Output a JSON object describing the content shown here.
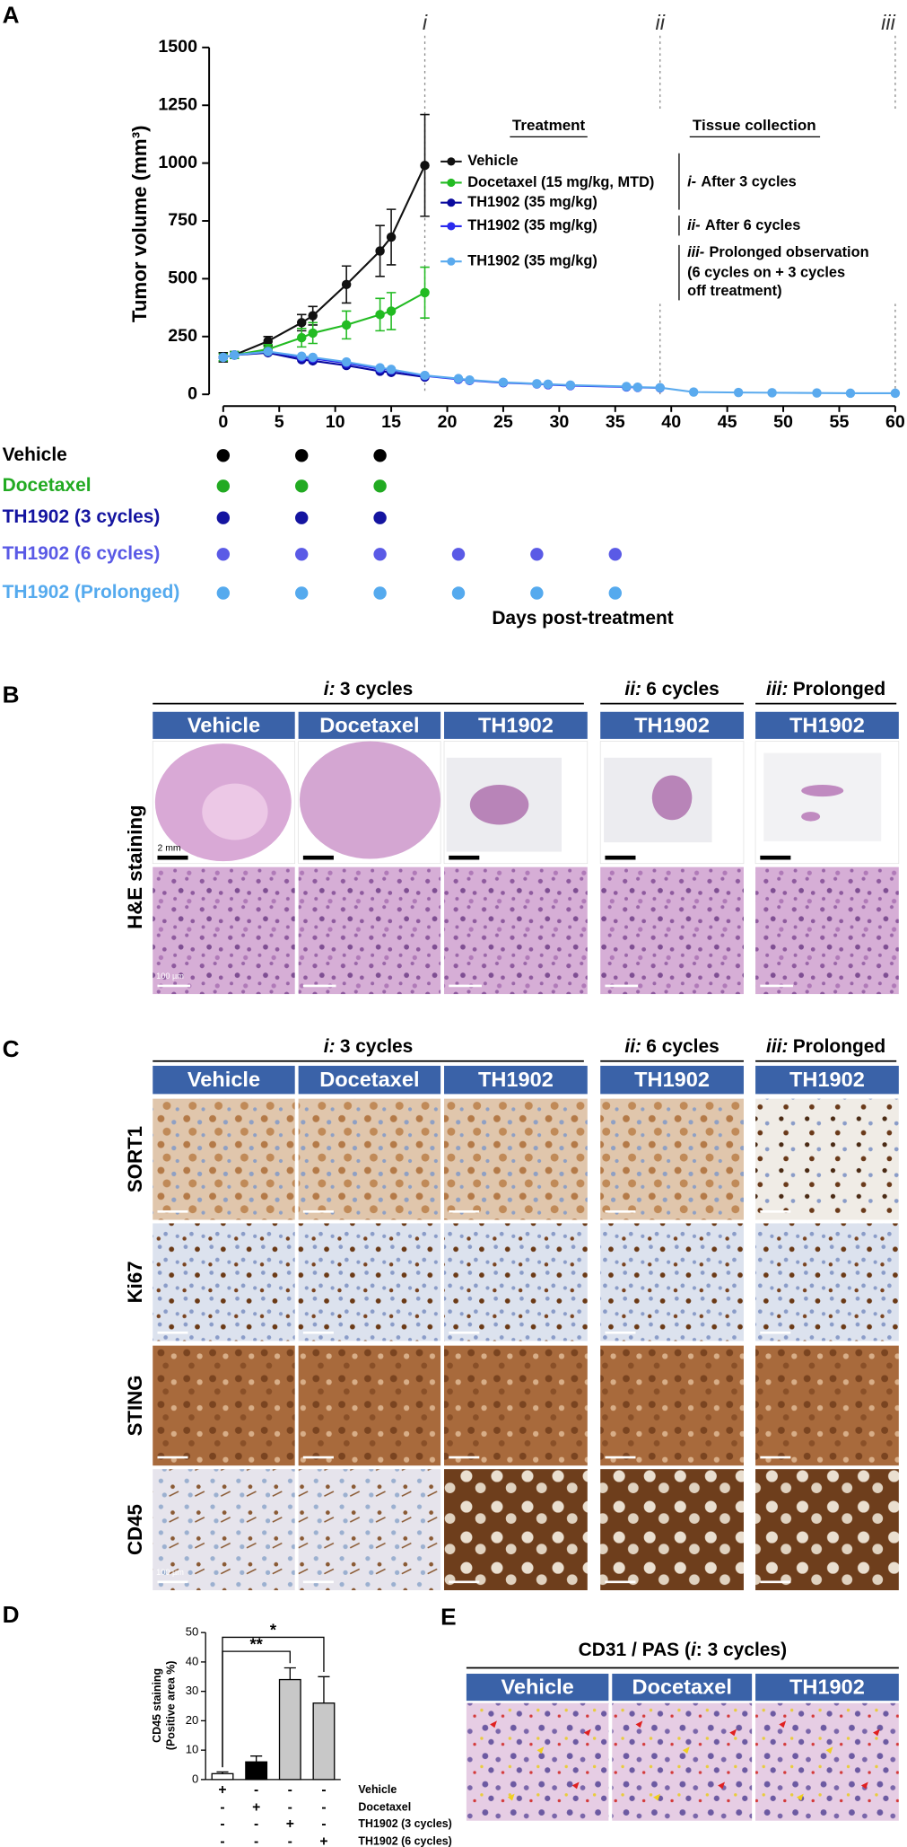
{
  "panel_labels": [
    "A",
    "B",
    "C",
    "D",
    "E"
  ],
  "chart_data": [
    {
      "type": "line",
      "ylabel": "Tumor volume (mm³)",
      "xlim": [
        0,
        60
      ],
      "xticks": [
        0,
        5,
        10,
        15,
        20,
        25,
        30,
        35,
        40,
        45,
        50,
        55,
        60
      ],
      "ylim": [
        0,
        1500
      ],
      "yticks": [
        0,
        250,
        500,
        750,
        1000,
        1250,
        1500
      ],
      "legend_title": "Treatment",
      "collection_title": "Tissue collection",
      "phases": [
        {
          "x": 18,
          "label": "i",
          "collection": {
            "numeral": "i-",
            "lines": [
              "After 3 cycles"
            ]
          }
        },
        {
          "x": 39,
          "label": "ii",
          "collection": {
            "numeral": "ii-",
            "lines": [
              "After 6 cycles"
            ]
          }
        },
        {
          "x": 60,
          "label": "iii",
          "collection": {
            "numeral": "iii-",
            "lines": [
              "Prolonged observation",
              "(6 cycles on + 3 cycles",
              "off treatment)"
            ]
          }
        }
      ],
      "series": [
        {
          "name": "Vehicle",
          "color": "#111111",
          "x": [
            0,
            1,
            4,
            7,
            8,
            11,
            14,
            15,
            18
          ],
          "values": [
            160,
            170,
            230,
            310,
            340,
            475,
            620,
            680,
            990
          ],
          "errors": [
            20,
            15,
            20,
            35,
            40,
            80,
            110,
            120,
            220
          ]
        },
        {
          "name": "Docetaxel (15 mg/kg, MTD)",
          "color": "#22bb22",
          "x": [
            0,
            1,
            4,
            7,
            8,
            11,
            14,
            15,
            18
          ],
          "values": [
            160,
            170,
            195,
            245,
            265,
            300,
            345,
            360,
            440
          ],
          "errors": [
            15,
            15,
            20,
            40,
            45,
            60,
            70,
            80,
            110
          ]
        },
        {
          "name": "TH1902 (35 mg/kg)",
          "color": "#0a0a9e",
          "x": [
            0,
            1,
            4,
            7,
            8,
            11,
            14,
            15,
            18
          ],
          "values": [
            160,
            170,
            180,
            150,
            145,
            125,
            100,
            95,
            75
          ]
        },
        {
          "name": "TH1902 (35 mg/kg)",
          "color": "#2a2aee",
          "x": [
            0,
            1,
            4,
            7,
            8,
            11,
            14,
            15,
            18,
            21,
            22,
            25,
            28,
            29,
            31,
            36,
            37,
            39
          ],
          "values": [
            160,
            170,
            185,
            160,
            155,
            135,
            110,
            105,
            80,
            65,
            60,
            50,
            45,
            42,
            38,
            32,
            30,
            28
          ]
        },
        {
          "name": "TH1902 (35 mg/kg)",
          "color": "#5aaaee",
          "x": [
            0,
            1,
            4,
            7,
            8,
            11,
            14,
            15,
            18,
            21,
            22,
            25,
            28,
            29,
            31,
            36,
            37,
            39,
            42,
            46,
            49,
            53,
            56,
            60
          ],
          "values": [
            160,
            170,
            185,
            165,
            160,
            140,
            115,
            108,
            82,
            68,
            62,
            52,
            46,
            44,
            40,
            34,
            31,
            29,
            10,
            8,
            7,
            6,
            5,
            5
          ]
        }
      ]
    },
    {
      "type": "bar",
      "ylabel_lines": [
        "CD45 staining",
        "(Positive area %)"
      ],
      "ylim": [
        0,
        50
      ],
      "yticks": [
        0,
        10,
        20,
        30,
        40,
        50
      ],
      "values": [
        2,
        6,
        34,
        26
      ],
      "errors": [
        0.6,
        2,
        4,
        9
      ],
      "colors": [
        "#ffffff",
        "#000000",
        "#c8c8c8",
        "#c8c8c8"
      ],
      "significance": [
        {
          "from": 0,
          "to": 2,
          "label": "**"
        },
        {
          "from": 0,
          "to": 3,
          "label": "*"
        }
      ],
      "treatment_matrix": [
        {
          "name": "Vehicle",
          "marks": [
            "+",
            "-",
            "-",
            "-"
          ]
        },
        {
          "name": "Docetaxel",
          "marks": [
            "-",
            "+",
            "-",
            "-"
          ]
        },
        {
          "name": "TH1902 (3 cycles)",
          "marks": [
            "-",
            "-",
            "+",
            "-"
          ]
        },
        {
          "name": "TH1902 (6 cycles)",
          "marks": [
            "-",
            "-",
            "-",
            "+"
          ]
        }
      ]
    }
  ],
  "dosing_schedule": {
    "xlabel": "Days post-treatment",
    "rows": [
      {
        "label": "Vehicle",
        "color": "#000000",
        "days": [
          0,
          7,
          14
        ]
      },
      {
        "label": "Docetaxel",
        "color": "#22aa22",
        "days": [
          0,
          7,
          14
        ]
      },
      {
        "label": "TH1902 (3 cycles)",
        "color": "#1414a0",
        "days": [
          0,
          7,
          14
        ]
      },
      {
        "label": "TH1902 (6 cycles)",
        "color": "#5a5ae6",
        "days": [
          0,
          7,
          14,
          21,
          28,
          35
        ]
      },
      {
        "label": "TH1902 (Prolonged)",
        "color": "#55aaee",
        "days": [
          0,
          7,
          14,
          21,
          28,
          35
        ]
      }
    ]
  },
  "histology": {
    "groups": [
      {
        "numeral": "i:",
        "text": "3 cycles",
        "columns": [
          "Vehicle",
          "Docetaxel",
          "TH1902"
        ]
      },
      {
        "numeral": "ii:",
        "text": "6 cycles",
        "columns": [
          "TH1902"
        ]
      },
      {
        "numeral": "iii:",
        "text": "Prolonged",
        "columns": [
          "TH1902"
        ]
      }
    ],
    "he_label": "H&E staining",
    "scale_gross": "2 mm",
    "scale_micro": "100 µm",
    "ihc_rows": [
      "SORT1",
      "Ki67",
      "STING",
      "CD45"
    ]
  },
  "cd31": {
    "title_prefix": "CD31 / PAS  (",
    "numeral": "i",
    "title_suffix": ": 3 cycles)",
    "columns": [
      "Vehicle",
      "Docetaxel",
      "TH1902"
    ]
  }
}
